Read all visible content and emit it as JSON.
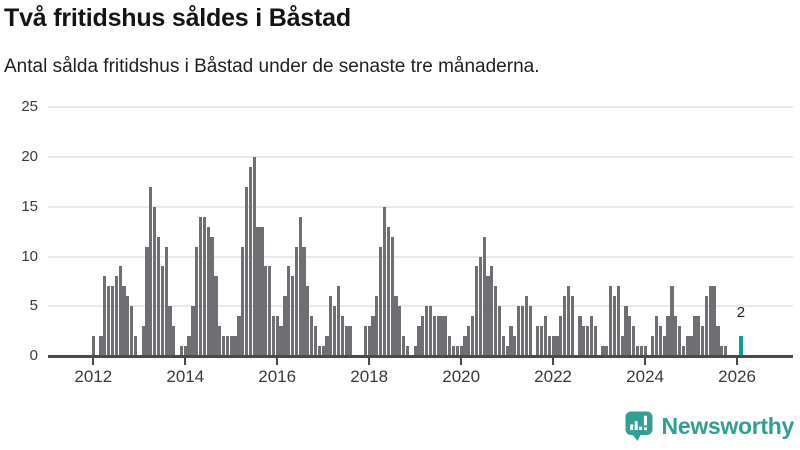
{
  "header": {
    "title": "Två fritidshus såldes i Båstad",
    "subtitle": "Antal sålda fritidshus i Båstad under de senaste tre månaderna."
  },
  "chart_data": {
    "type": "bar",
    "title": "Två fritidshus såldes i Båstad",
    "subtitle": "Antal sålda fritidshus i Båstad under de senaste tre månaderna.",
    "x_start": "2012-01",
    "x_end": "2026-02",
    "x_unit": "month",
    "x_tick_labels": [
      "2012",
      "2014",
      "2016",
      "2018",
      "2020",
      "2022",
      "2024",
      "2026"
    ],
    "y_ticks": [
      0,
      5,
      10,
      15,
      20,
      25
    ],
    "ylim": [
      0,
      25
    ],
    "grid": "horizontal",
    "values": [
      2,
      0,
      2,
      8,
      7,
      7,
      8,
      9,
      7,
      6,
      5,
      2,
      0,
      3,
      11,
      17,
      15,
      12,
      9,
      11,
      5,
      3,
      0,
      1,
      1,
      2,
      5,
      11,
      14,
      14,
      13,
      12,
      8,
      3,
      2,
      2,
      2,
      2,
      4,
      11,
      17,
      19,
      20,
      13,
      13,
      9,
      9,
      4,
      4,
      3,
      6,
      9,
      8,
      11,
      14,
      11,
      7,
      4,
      3,
      1,
      1,
      2,
      6,
      5,
      7,
      4,
      3,
      3,
      0,
      0,
      0,
      3,
      3,
      4,
      6,
      11,
      15,
      13,
      12,
      6,
      5,
      2,
      1,
      0,
      1,
      3,
      4,
      5,
      5,
      4,
      4,
      4,
      4,
      2,
      1,
      1,
      1,
      2,
      3,
      4,
      9,
      10,
      12,
      8,
      9,
      7,
      5,
      2,
      1,
      3,
      2,
      5,
      5,
      6,
      5,
      0,
      3,
      3,
      4,
      2,
      2,
      2,
      4,
      6,
      7,
      6,
      0,
      4,
      3,
      3,
      4,
      3,
      0,
      1,
      1,
      7,
      6,
      7,
      2,
      5,
      4,
      3,
      1,
      1,
      1,
      0,
      2,
      4,
      3,
      2,
      4,
      7,
      4,
      3,
      1,
      2,
      2,
      4,
      4,
      3,
      6,
      7,
      7,
      3,
      1,
      1,
      0,
      0,
      0,
      2
    ],
    "highlight": {
      "index": 169,
      "value": 2,
      "label": "2"
    },
    "colors": {
      "bar": "#6e6e73",
      "highlight": "#0a9da0",
      "grid": "#e9e9e9",
      "axis": "#4a4a4a",
      "tick_text": "#3a3a3a"
    }
  },
  "footer": {
    "brand": "Newsworthy",
    "logo_color": "#2fa093"
  }
}
